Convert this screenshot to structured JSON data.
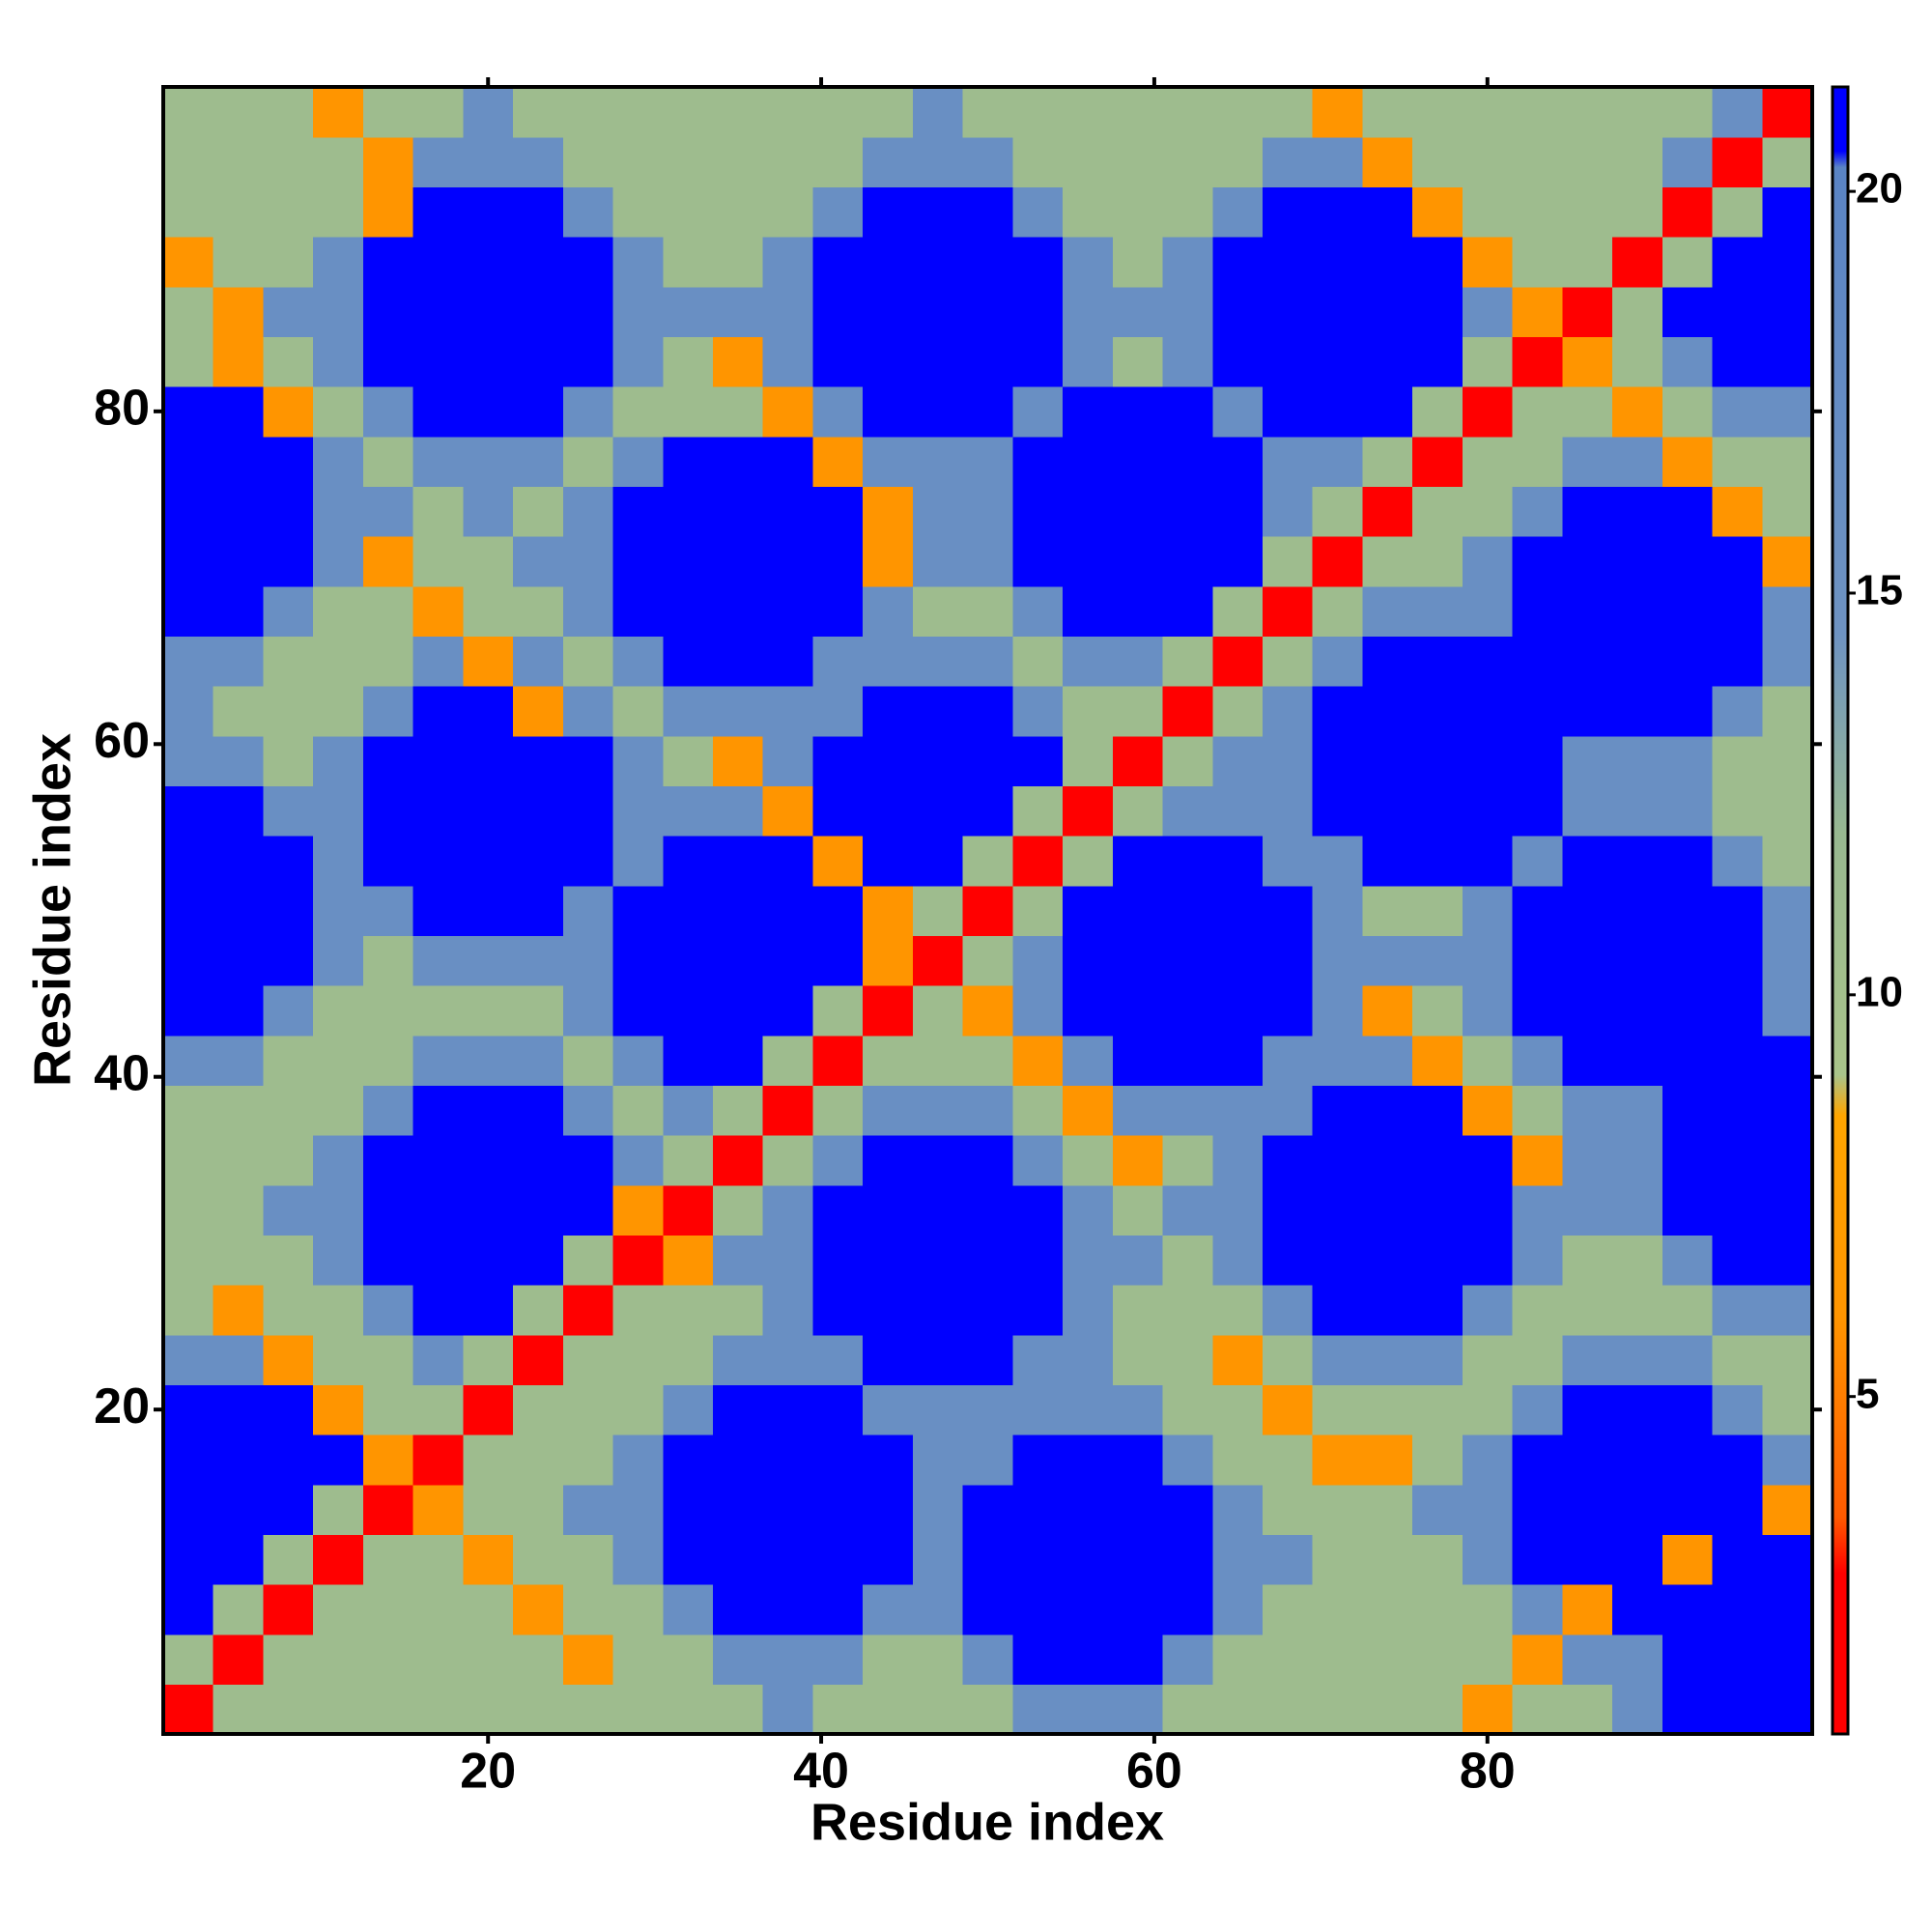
{
  "chart_data": {
    "type": "heatmap",
    "x_label": "Residue index",
    "y_label": "Residue index",
    "x": [
      2,
      5,
      8,
      11,
      14,
      17,
      20,
      23,
      26,
      29,
      32,
      35,
      38,
      41,
      44,
      47,
      50,
      53,
      56,
      59,
      62,
      65,
      68,
      71,
      74,
      77,
      80,
      83,
      86,
      89,
      92,
      95,
      98
    ],
    "y": [
      2,
      5,
      8,
      11,
      14,
      17,
      20,
      23,
      26,
      29,
      32,
      35,
      38,
      41,
      44,
      47,
      50,
      53,
      56,
      59,
      62,
      65,
      68,
      71,
      74,
      77,
      80,
      83,
      86,
      89,
      92,
      95,
      98
    ],
    "z": [
      [
        2,
        11,
        11,
        11,
        11,
        11,
        11,
        11,
        11,
        11,
        11,
        11,
        16,
        11,
        11,
        11,
        11,
        16,
        16,
        16,
        11,
        11,
        11,
        11,
        11,
        11,
        6,
        11,
        11,
        16,
        21,
        21,
        21
      ],
      [
        11,
        2,
        11,
        11,
        11,
        11,
        11,
        11,
        6,
        11,
        11,
        16,
        16,
        16,
        11,
        11,
        16,
        21,
        21,
        21,
        16,
        11,
        11,
        11,
        11,
        11,
        11,
        6,
        16,
        16,
        21,
        21,
        21
      ],
      [
        21,
        11,
        2,
        11,
        11,
        11,
        11,
        6,
        11,
        11,
        16,
        21,
        21,
        21,
        16,
        16,
        21,
        21,
        21,
        21,
        21,
        16,
        11,
        11,
        11,
        11,
        11,
        16,
        6,
        21,
        21,
        21,
        21
      ],
      [
        21,
        21,
        11,
        2,
        11,
        11,
        6,
        11,
        11,
        16,
        21,
        21,
        21,
        21,
        21,
        16,
        21,
        21,
        21,
        21,
        21,
        16,
        16,
        11,
        11,
        11,
        16,
        21,
        21,
        21,
        6,
        21,
        21
      ],
      [
        21,
        21,
        21,
        11,
        2,
        6,
        11,
        11,
        16,
        16,
        21,
        21,
        21,
        21,
        21,
        16,
        21,
        21,
        21,
        21,
        21,
        16,
        11,
        11,
        11,
        16,
        16,
        21,
        21,
        21,
        21,
        21,
        6
      ],
      [
        21,
        21,
        21,
        21,
        6,
        2,
        11,
        11,
        11,
        16,
        21,
        21,
        21,
        21,
        21,
        16,
        16,
        21,
        21,
        21,
        16,
        11,
        11,
        6,
        6,
        11,
        16,
        21,
        21,
        21,
        21,
        21,
        16
      ],
      [
        21,
        21,
        21,
        6,
        11,
        11,
        2,
        11,
        11,
        11,
        16,
        21,
        21,
        21,
        16,
        16,
        16,
        16,
        16,
        16,
        11,
        11,
        6,
        11,
        11,
        11,
        11,
        16,
        21,
        21,
        21,
        16,
        11
      ],
      [
        16,
        16,
        6,
        11,
        11,
        16,
        11,
        2,
        11,
        11,
        11,
        16,
        16,
        16,
        21,
        21,
        21,
        16,
        16,
        11,
        11,
        6,
        11,
        16,
        16,
        16,
        11,
        11,
        16,
        16,
        16,
        11,
        11
      ],
      [
        11,
        6,
        11,
        11,
        16,
        21,
        21,
        11,
        2,
        11,
        11,
        11,
        16,
        21,
        21,
        21,
        21,
        21,
        16,
        11,
        11,
        11,
        16,
        21,
        21,
        21,
        16,
        11,
        11,
        11,
        11,
        16,
        16
      ],
      [
        11,
        11,
        11,
        16,
        21,
        21,
        21,
        21,
        11,
        2,
        6,
        16,
        16,
        21,
        21,
        21,
        21,
        21,
        16,
        16,
        11,
        16,
        21,
        21,
        21,
        21,
        21,
        16,
        11,
        11,
        16,
        21,
        21
      ],
      [
        11,
        11,
        16,
        16,
        21,
        21,
        21,
        21,
        21,
        6,
        2,
        11,
        16,
        21,
        21,
        21,
        21,
        21,
        16,
        11,
        16,
        16,
        21,
        21,
        21,
        21,
        21,
        16,
        16,
        16,
        21,
        21,
        21
      ],
      [
        11,
        11,
        11,
        16,
        21,
        21,
        21,
        21,
        21,
        16,
        11,
        2,
        11,
        16,
        21,
        21,
        21,
        16,
        11,
        6,
        11,
        16,
        21,
        21,
        21,
        21,
        21,
        6,
        16,
        16,
        21,
        21,
        21
      ],
      [
        11,
        11,
        11,
        11,
        16,
        21,
        21,
        21,
        16,
        11,
        16,
        11,
        2,
        11,
        16,
        16,
        16,
        11,
        6,
        16,
        16,
        16,
        16,
        21,
        21,
        21,
        6,
        11,
        16,
        16,
        21,
        21,
        21
      ],
      [
        16,
        16,
        11,
        11,
        11,
        16,
        16,
        16,
        11,
        16,
        21,
        21,
        11,
        2,
        11,
        11,
        11,
        6,
        16,
        21,
        21,
        21,
        16,
        16,
        16,
        6,
        11,
        16,
        21,
        21,
        21,
        21,
        21
      ],
      [
        21,
        21,
        16,
        11,
        11,
        11,
        11,
        11,
        16,
        21,
        21,
        21,
        21,
        11,
        2,
        11,
        6,
        16,
        21,
        21,
        21,
        21,
        21,
        16,
        6,
        11,
        16,
        21,
        21,
        21,
        21,
        21,
        16
      ],
      [
        21,
        21,
        21,
        16,
        11,
        16,
        16,
        16,
        16,
        21,
        21,
        21,
        21,
        21,
        6,
        2,
        11,
        16,
        21,
        21,
        21,
        21,
        21,
        16,
        16,
        16,
        16,
        21,
        21,
        21,
        21,
        21,
        16
      ],
      [
        21,
        21,
        21,
        16,
        16,
        21,
        21,
        21,
        16,
        21,
        21,
        21,
        21,
        21,
        6,
        11,
        2,
        11,
        21,
        21,
        21,
        21,
        21,
        16,
        11,
        11,
        16,
        21,
        21,
        21,
        21,
        21,
        16
      ],
      [
        21,
        21,
        21,
        16,
        21,
        21,
        21,
        21,
        21,
        16,
        21,
        21,
        21,
        6,
        21,
        21,
        11,
        2,
        11,
        21,
        21,
        21,
        16,
        16,
        21,
        21,
        21,
        16,
        21,
        21,
        21,
        16,
        11
      ],
      [
        21,
        21,
        16,
        16,
        21,
        21,
        21,
        21,
        21,
        16,
        16,
        16,
        6,
        21,
        21,
        21,
        21,
        11,
        2,
        11,
        16,
        16,
        16,
        21,
        21,
        21,
        21,
        21,
        16,
        16,
        16,
        11,
        11
      ],
      [
        16,
        16,
        11,
        16,
        21,
        21,
        21,
        21,
        21,
        16,
        11,
        6,
        16,
        21,
        21,
        21,
        21,
        21,
        11,
        2,
        11,
        16,
        16,
        21,
        21,
        21,
        21,
        21,
        16,
        16,
        16,
        11,
        11
      ],
      [
        16,
        11,
        11,
        11,
        16,
        21,
        21,
        6,
        16,
        11,
        16,
        16,
        16,
        16,
        21,
        21,
        21,
        16,
        11,
        11,
        2,
        11,
        16,
        21,
        21,
        21,
        21,
        21,
        21,
        21,
        21,
        16,
        11
      ],
      [
        16,
        16,
        11,
        11,
        11,
        16,
        6,
        16,
        11,
        16,
        21,
        21,
        21,
        16,
        16,
        16,
        16,
        11,
        16,
        16,
        11,
        2,
        11,
        16,
        21,
        21,
        21,
        21,
        21,
        21,
        21,
        21,
        16
      ],
      [
        21,
        21,
        16,
        11,
        11,
        6,
        11,
        11,
        16,
        21,
        21,
        21,
        21,
        21,
        16,
        11,
        11,
        16,
        21,
        21,
        21,
        11,
        2,
        11,
        16,
        16,
        16,
        21,
        21,
        21,
        21,
        21,
        16
      ],
      [
        21,
        21,
        21,
        16,
        6,
        11,
        11,
        16,
        16,
        21,
        21,
        21,
        21,
        21,
        6,
        16,
        16,
        21,
        21,
        21,
        21,
        21,
        11,
        2,
        11,
        11,
        16,
        21,
        21,
        21,
        21,
        21,
        6
      ],
      [
        21,
        21,
        21,
        16,
        16,
        11,
        16,
        11,
        16,
        21,
        21,
        21,
        21,
        21,
        6,
        16,
        16,
        21,
        21,
        21,
        21,
        21,
        16,
        11,
        2,
        11,
        11,
        16,
        21,
        21,
        21,
        6,
        11
      ],
      [
        21,
        21,
        21,
        16,
        11,
        16,
        16,
        16,
        11,
        16,
        21,
        21,
        21,
        6,
        16,
        16,
        16,
        21,
        21,
        21,
        21,
        21,
        16,
        16,
        11,
        2,
        11,
        11,
        16,
        16,
        6,
        11,
        11
      ],
      [
        21,
        21,
        6,
        11,
        16,
        21,
        21,
        21,
        16,
        11,
        11,
        11,
        6,
        16,
        21,
        21,
        21,
        16,
        21,
        21,
        21,
        16,
        21,
        21,
        21,
        11,
        2,
        11,
        11,
        6,
        11,
        16,
        16
      ],
      [
        11,
        6,
        11,
        16,
        21,
        21,
        21,
        21,
        21,
        16,
        11,
        6,
        16,
        21,
        21,
        21,
        21,
        21,
        16,
        11,
        16,
        21,
        21,
        21,
        21,
        21,
        11,
        2,
        6,
        11,
        16,
        21,
        21
      ],
      [
        11,
        6,
        16,
        16,
        21,
        21,
        21,
        21,
        21,
        16,
        16,
        16,
        16,
        21,
        21,
        21,
        21,
        21,
        16,
        16,
        16,
        21,
        21,
        21,
        21,
        21,
        16,
        6,
        2,
        11,
        21,
        21,
        21
      ],
      [
        6,
        11,
        11,
        16,
        21,
        21,
        21,
        21,
        21,
        16,
        11,
        11,
        16,
        21,
        21,
        21,
        21,
        21,
        16,
        11,
        16,
        21,
        21,
        21,
        21,
        21,
        6,
        11,
        11,
        2,
        11,
        21,
        21
      ],
      [
        11,
        11,
        11,
        11,
        6,
        21,
        21,
        21,
        16,
        11,
        11,
        11,
        11,
        16,
        21,
        21,
        21,
        16,
        11,
        11,
        11,
        16,
        21,
        21,
        21,
        6,
        11,
        11,
        11,
        11,
        2,
        11,
        21
      ],
      [
        11,
        11,
        11,
        11,
        6,
        16,
        16,
        16,
        11,
        11,
        11,
        11,
        11,
        11,
        16,
        16,
        16,
        11,
        11,
        11,
        11,
        11,
        16,
        16,
        6,
        11,
        11,
        11,
        11,
        11,
        16,
        2,
        11
      ],
      [
        11,
        11,
        11,
        6,
        11,
        11,
        16,
        11,
        11,
        11,
        11,
        11,
        11,
        11,
        11,
        16,
        11,
        11,
        11,
        11,
        11,
        11,
        11,
        6,
        11,
        11,
        11,
        11,
        11,
        11,
        11,
        16,
        2
      ]
    ],
    "xlim": [
      0.5,
      99.5
    ],
    "ylim": [
      0.5,
      99.5
    ],
    "xticks": [
      20,
      40,
      60,
      80
    ],
    "yticks": [
      20,
      40,
      60,
      80
    ],
    "colorbar": {
      "lim": [
        0.8,
        21.3
      ],
      "ticks": [
        5,
        10,
        15,
        20
      ]
    },
    "colorscale": [
      [
        0.8,
        "#ff0000"
      ],
      [
        2.8,
        "#ff0000"
      ],
      [
        3.5,
        "#ff5a00"
      ],
      [
        6,
        "#ff9500"
      ],
      [
        8.5,
        "#ffa500"
      ],
      [
        9,
        "#a9c48a"
      ],
      [
        12,
        "#98b890"
      ],
      [
        14.5,
        "#6e93c2"
      ],
      [
        20.3,
        "#5a84c4"
      ],
      [
        20.5,
        "#0000ff"
      ],
      [
        21.3,
        "#0000ff"
      ]
    ]
  }
}
